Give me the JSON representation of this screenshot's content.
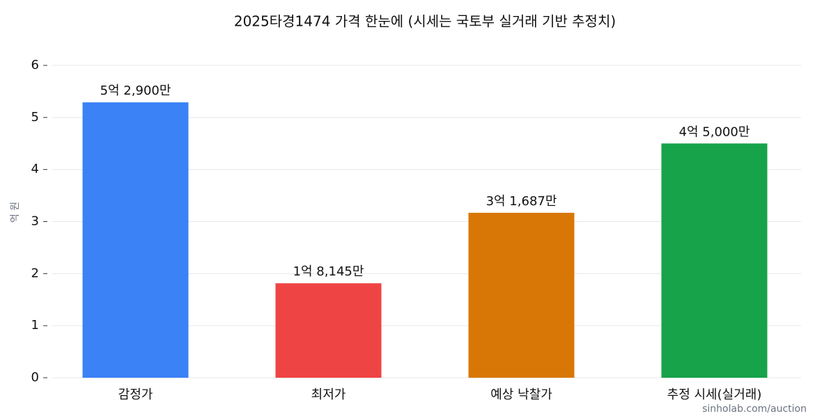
{
  "chart_data": {
    "type": "bar",
    "title": "2025타경1474 가격 한눈에 (시세는 국토부 실거래 기반 추정치)",
    "ylabel": "억 원",
    "categories": [
      "감정가",
      "최저가",
      "예상 낙찰가",
      "추정 시세(실거래)"
    ],
    "values": [
      5.29,
      1.8145,
      3.1687,
      4.5
    ],
    "value_labels": [
      "5억 2,900만",
      "1억 8,145만",
      "3억 1,687만",
      "4억 5,000만"
    ],
    "colors": [
      "#3b82f6",
      "#ef4444",
      "#d97706",
      "#16a34a"
    ],
    "ylim": [
      0,
      6
    ],
    "yticks": [
      0,
      1,
      2,
      3,
      4,
      5,
      6
    ],
    "grid": true,
    "watermark": "sinholab.com/auction"
  }
}
